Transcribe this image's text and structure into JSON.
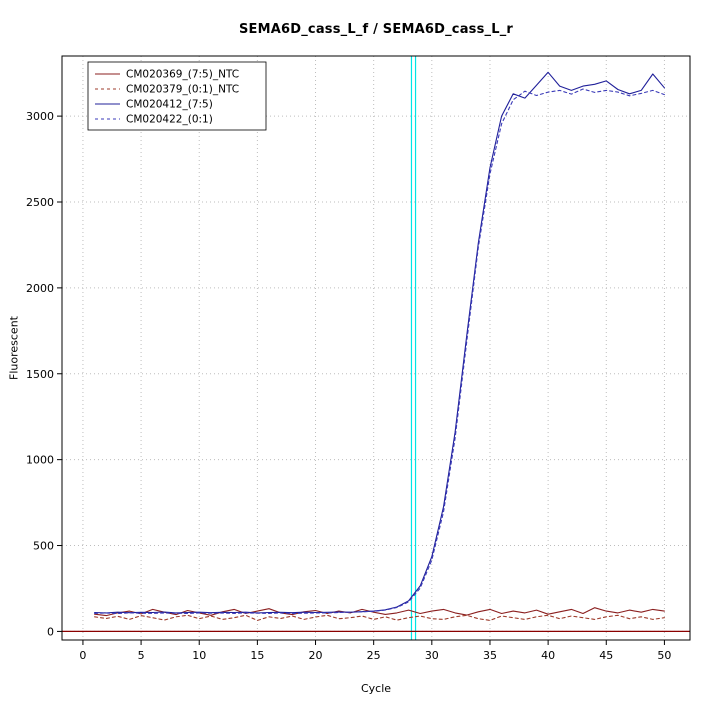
{
  "chart_data": {
    "type": "line",
    "title": "SEMA6D_cass_L_f / SEMA6D_cass_L_r",
    "xlabel": "Cycle",
    "ylabel": "Fluorescent",
    "xlim": [
      -1.8,
      52.2
    ],
    "ylim": [
      -50,
      3350
    ],
    "x_ticks": [
      0,
      5,
      10,
      15,
      20,
      25,
      30,
      35,
      40,
      45,
      50
    ],
    "y_ticks": [
      0,
      500,
      1000,
      1500,
      2000,
      2500,
      3000
    ],
    "grid": {
      "style": "dotted",
      "color": "#bdbdbd"
    },
    "legend_position": "top-left",
    "axis_color": "#000000",
    "x": [
      1,
      2,
      3,
      4,
      5,
      6,
      7,
      8,
      9,
      10,
      11,
      12,
      13,
      14,
      15,
      16,
      17,
      18,
      19,
      20,
      21,
      22,
      23,
      24,
      25,
      26,
      27,
      28,
      29,
      30,
      31,
      32,
      33,
      34,
      35,
      36,
      37,
      38,
      39,
      40,
      41,
      42,
      43,
      44,
      45,
      46,
      47,
      48,
      49,
      50
    ],
    "series": [
      {
        "name": "CM020369_(7:5)_NTC",
        "color": "#8b1f1f",
        "dash": null,
        "values": [
          100,
          92,
          108,
          118,
          102,
          128,
          112,
          98,
          122,
          108,
          94,
          114,
          128,
          104,
          118,
          132,
          108,
          98,
          114,
          122,
          104,
          118,
          108,
          128,
          112,
          99,
          108,
          124,
          104,
          118,
          128,
          108,
          95,
          114,
          128,
          104,
          118,
          108,
          124,
          100,
          114,
          128,
          104,
          138,
          118,
          108,
          124,
          112,
          128,
          118
        ]
      },
      {
        "name": "CM020379_(0:1)_NTC",
        "color": "#9e3b2b",
        "dash": "3 3",
        "values": [
          85,
          75,
          88,
          70,
          92,
          80,
          66,
          85,
          94,
          74,
          90,
          70,
          80,
          94,
          64,
          85,
          75,
          90,
          70,
          84,
          94,
          74,
          80,
          90,
          70,
          85,
          66,
          80,
          90,
          74,
          70,
          85,
          94,
          74,
          64,
          90,
          80,
          70,
          85,
          94,
          74,
          90,
          80,
          70,
          85,
          94,
          74,
          85,
          70,
          80
        ]
      },
      {
        "name": "CM020412_(7:5)",
        "color": "#20209a",
        "dash": null,
        "values": [
          110,
          108,
          112,
          109,
          111,
          110,
          113,
          108,
          110,
          112,
          109,
          111,
          110,
          112,
          108,
          110,
          111,
          109,
          112,
          110,
          111,
          113,
          112,
          115,
          118,
          126,
          142,
          178,
          265,
          435,
          725,
          1160,
          1720,
          2260,
          2700,
          3000,
          3130,
          3105,
          3180,
          3255,
          3175,
          3150,
          3175,
          3185,
          3205,
          3155,
          3130,
          3150,
          3245,
          3165
        ]
      },
      {
        "name": "CM020422_(0:1)",
        "color": "#3a3ab8",
        "dash": "3 3",
        "values": [
          105,
          107,
          104,
          108,
          106,
          105,
          107,
          106,
          104,
          108,
          106,
          107,
          105,
          108,
          106,
          105,
          107,
          104,
          106,
          107,
          108,
          110,
          112,
          114,
          117,
          124,
          139,
          172,
          252,
          415,
          695,
          1125,
          1685,
          2235,
          2665,
          2955,
          3095,
          3145,
          3120,
          3140,
          3150,
          3128,
          3158,
          3138,
          3150,
          3140,
          3118,
          3132,
          3150,
          3125
        ]
      }
    ],
    "reference_lines": {
      "horizontal": [
        {
          "y": 0,
          "color": "#8b0000"
        }
      ],
      "vertical": [
        {
          "x": 28.25,
          "color": "#00e5e5"
        },
        {
          "x": 28.6,
          "color": "#00e5e5"
        }
      ]
    }
  }
}
